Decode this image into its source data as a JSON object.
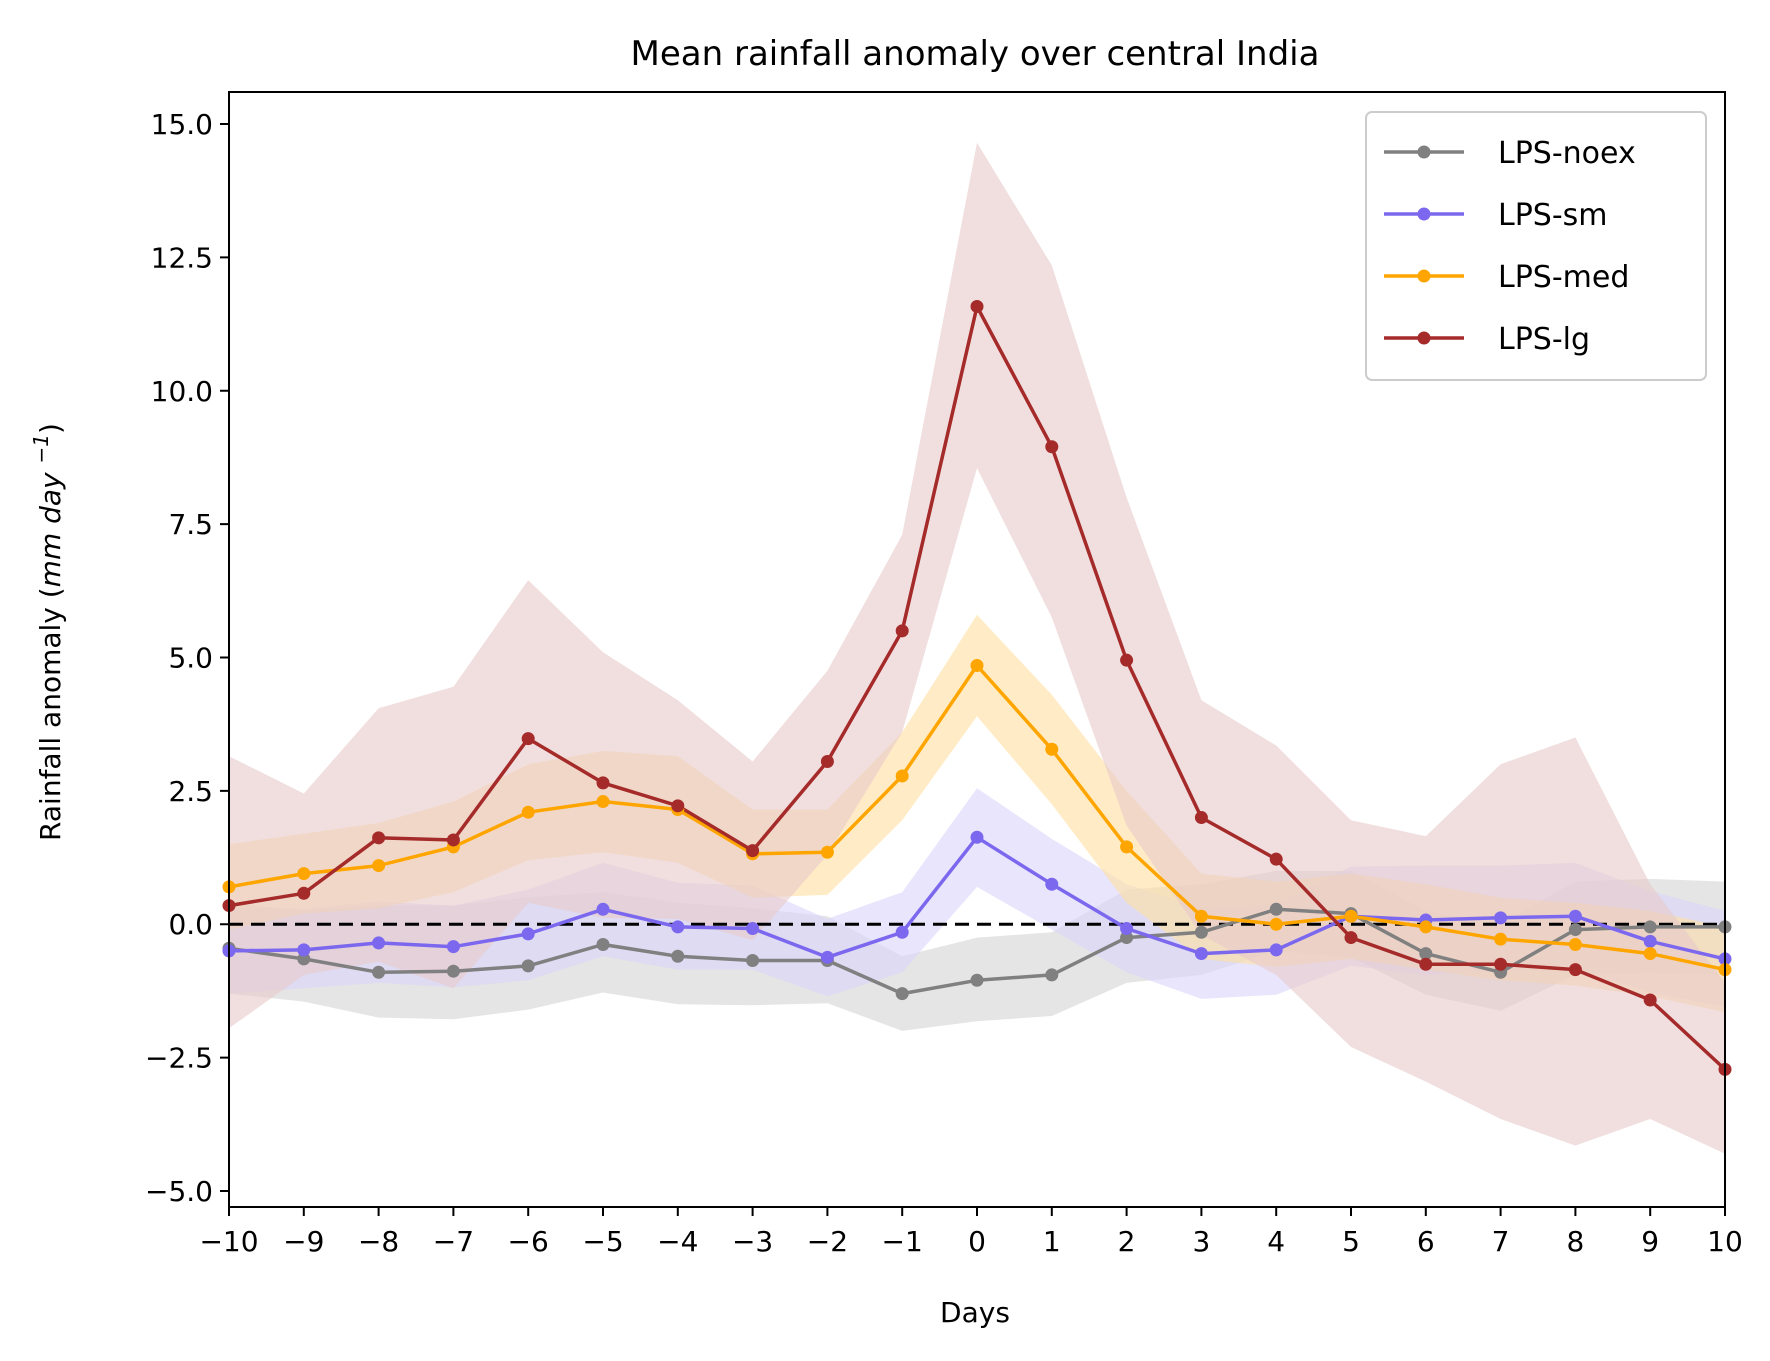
{
  "chart_data": {
    "type": "line",
    "title": "Mean rainfall anomaly over central India",
    "xlabel": "Days",
    "ylabel": "Rainfall anomaly (mm day",
    "ylabel_italic": "mm day",
    "ylabel_sup": "−1",
    "xlim": [
      -10,
      10
    ],
    "ylim": [
      -5.3,
      15.6
    ],
    "x": [
      -10,
      -9,
      -8,
      -7,
      -6,
      -5,
      -4,
      -3,
      -2,
      -1,
      0,
      1,
      2,
      3,
      4,
      5,
      6,
      7,
      8,
      9,
      10
    ],
    "x_tick_labels": [
      "−10",
      "−9",
      "−8",
      "−7",
      "−6",
      "−5",
      "−4",
      "−3",
      "−2",
      "−1",
      "0",
      "1",
      "2",
      "3",
      "4",
      "5",
      "6",
      "7",
      "8",
      "9",
      "10"
    ],
    "y_ticks": [
      -5.0,
      -2.5,
      0.0,
      2.5,
      5.0,
      7.5,
      10.0,
      12.5,
      15.0
    ],
    "y_tick_labels": [
      "−5.0",
      "−2.5",
      "0.0",
      "2.5",
      "5.0",
      "7.5",
      "10.0",
      "12.5",
      "15.0"
    ],
    "reference_line": {
      "y": 0,
      "style": "dashed",
      "color": "#000000"
    },
    "legend_position": "top-right",
    "series": [
      {
        "name": "LPS-noex",
        "color": "#808080",
        "band_color": "#d3d3d3",
        "values": [
          -0.45,
          -0.65,
          -0.9,
          -0.88,
          -0.78,
          -0.38,
          -0.6,
          -0.68,
          -0.68,
          -1.3,
          -1.05,
          -0.95,
          -0.25,
          -0.15,
          0.28,
          0.2,
          -0.55,
          -0.9,
          -0.1,
          -0.05,
          -0.05
        ],
        "upper": [
          0.4,
          0.25,
          0.35,
          0.35,
          0.5,
          0.6,
          0.4,
          0.3,
          0.15,
          -0.6,
          -0.25,
          -0.15,
          0.65,
          0.75,
          1.0,
          1.0,
          0.25,
          0.0,
          0.8,
          0.85,
          0.8
        ],
        "lower": [
          -1.3,
          -1.45,
          -1.75,
          -1.78,
          -1.6,
          -1.28,
          -1.5,
          -1.52,
          -1.48,
          -2.0,
          -1.82,
          -1.72,
          -1.1,
          -0.95,
          -0.5,
          -0.62,
          -1.32,
          -1.62,
          -0.95,
          -0.9,
          -0.95
        ]
      },
      {
        "name": "LPS-sm",
        "color": "#7b68ee",
        "band_color": "#d8d3fa",
        "values": [
          -0.5,
          -0.48,
          -0.35,
          -0.42,
          -0.18,
          0.28,
          -0.05,
          -0.08,
          -0.62,
          -0.15,
          1.63,
          0.75,
          -0.08,
          -0.55,
          -0.48,
          0.15,
          0.08,
          0.12,
          0.15,
          -0.32,
          -0.65
        ],
        "upper": [
          0.3,
          0.3,
          0.42,
          0.35,
          0.65,
          1.15,
          0.78,
          0.72,
          0.1,
          0.6,
          2.55,
          1.6,
          0.75,
          0.3,
          0.38,
          1.08,
          1.1,
          1.1,
          1.15,
          0.62,
          0.25
        ],
        "lower": [
          -1.3,
          -1.2,
          -1.1,
          -1.18,
          -1.05,
          -0.6,
          -0.85,
          -0.85,
          -1.35,
          -0.9,
          0.7,
          -0.1,
          -0.9,
          -1.4,
          -1.32,
          -0.78,
          -0.95,
          -0.88,
          -0.85,
          -1.28,
          -1.55
        ]
      },
      {
        "name": "LPS-med",
        "color": "#ffa500",
        "band_color": "#ffe0a0",
        "values": [
          0.7,
          0.95,
          1.1,
          1.45,
          2.1,
          2.3,
          2.15,
          1.32,
          1.35,
          2.78,
          4.85,
          3.28,
          1.45,
          0.15,
          0.0,
          0.15,
          -0.05,
          -0.28,
          -0.38,
          -0.55,
          -0.85
        ],
        "upper": [
          1.5,
          1.7,
          1.9,
          2.3,
          3.0,
          3.25,
          3.15,
          2.15,
          2.15,
          3.6,
          5.8,
          4.3,
          2.5,
          0.95,
          0.8,
          0.95,
          0.75,
          0.5,
          0.4,
          0.25,
          -0.05
        ],
        "lower": [
          -0.1,
          0.2,
          0.3,
          0.6,
          1.2,
          1.35,
          1.15,
          0.5,
          0.55,
          1.95,
          3.9,
          2.25,
          0.4,
          -0.65,
          -0.8,
          -0.65,
          -0.85,
          -1.05,
          -1.15,
          -1.35,
          -1.65
        ]
      },
      {
        "name": "LPS-lg",
        "color": "#a52a2a",
        "band_color": "#e8c9c9",
        "values": [
          0.35,
          0.58,
          1.62,
          1.58,
          3.48,
          2.65,
          2.22,
          1.38,
          3.05,
          5.5,
          11.58,
          8.95,
          4.95,
          2.0,
          1.22,
          -0.25,
          -0.75,
          -0.75,
          -0.85,
          -1.42,
          -2.72
        ],
        "upper": [
          3.15,
          2.45,
          4.05,
          4.45,
          6.45,
          5.1,
          4.2,
          3.05,
          4.75,
          7.3,
          14.65,
          12.35,
          8.0,
          4.2,
          3.35,
          1.95,
          1.65,
          3.0,
          3.5,
          0.75,
          -1.1
        ],
        "lower": [
          -1.95,
          -0.95,
          -0.7,
          -1.2,
          0.4,
          0.12,
          0.1,
          -0.3,
          1.3,
          3.6,
          8.55,
          5.75,
          1.85,
          -0.2,
          -0.95,
          -2.3,
          -2.95,
          -3.65,
          -4.15,
          -3.65,
          -4.3
        ]
      }
    ]
  }
}
